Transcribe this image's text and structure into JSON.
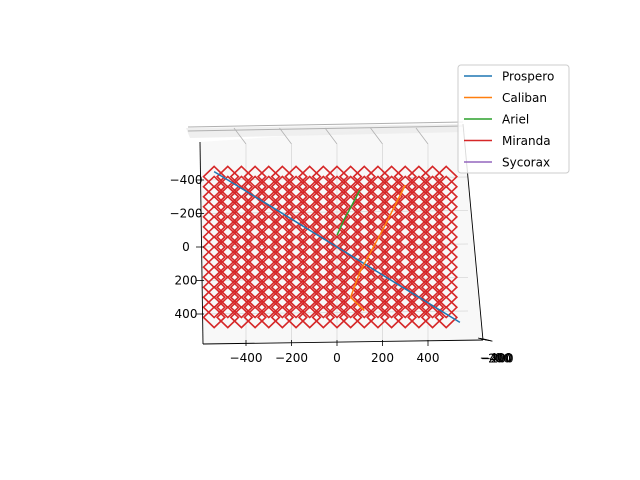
{
  "chart_data": {
    "type": "line3d",
    "title": "",
    "xlabel": "",
    "ylabel": "",
    "zlabel": "",
    "xlim": [
      -600,
      600
    ],
    "zlim": [
      -600,
      600
    ],
    "x_ticks": [
      -400,
      -200,
      0,
      200,
      400
    ],
    "x_tick_labels": [
      "−400",
      "−200",
      "0",
      "200",
      "400"
    ],
    "z_ticks": [
      -400,
      -200,
      0,
      200,
      400
    ],
    "z_tick_labels": [
      "−400",
      "−200",
      "0",
      "200",
      "400"
    ],
    "depth_tick_labels": [
      "−400",
      "−200",
      "0",
      "200",
      "400"
    ],
    "grid": true,
    "legend_position": "upper-right",
    "series": [
      {
        "name": "Prospero",
        "color": "#1f77b4",
        "x": [
          -540,
          -270,
          0,
          270,
          540
        ],
        "z": [
          -450,
          -225,
          0,
          225,
          450
        ]
      },
      {
        "name": "Caliban",
        "color": "#ff7f0e",
        "x": [
          300,
          200,
          100,
          60,
          120
        ],
        "z": [
          -370,
          -100,
          150,
          300,
          380
        ]
      },
      {
        "name": "Ariel",
        "color": "#2ca02c",
        "x": [
          100,
          70,
          30,
          0
        ],
        "z": [
          -340,
          -260,
          -160,
          -70
        ]
      },
      {
        "name": "Miranda",
        "color": "#d62728",
        "lattice": {
          "x_min": -540,
          "x_max": 480,
          "z_min": -420,
          "z_max": 450,
          "cell": 60
        }
      },
      {
        "name": "Sycorax",
        "color": "#9467bd",
        "x": [],
        "z": []
      }
    ]
  }
}
